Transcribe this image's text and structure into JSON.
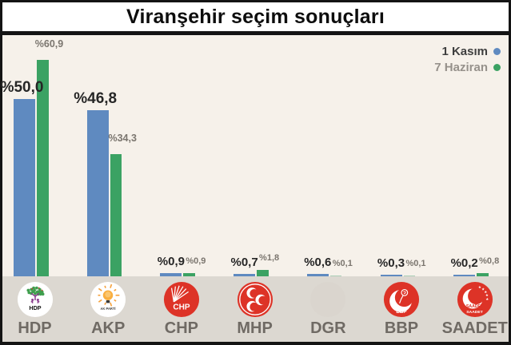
{
  "title": "Viranşehir seçim sonuçları",
  "legend": {
    "items": [
      {
        "label": "1 Kasım",
        "color": "#5f8ac0"
      },
      {
        "label": "7 Haziran",
        "color": "#3ba263"
      }
    ]
  },
  "chart_data": {
    "type": "bar",
    "title": "Viranşehir seçim sonuçları",
    "categories": [
      "HDP",
      "AKP",
      "CHP",
      "MHP",
      "DGR",
      "BBP",
      "SAADET"
    ],
    "series": [
      {
        "name": "1 Kasım",
        "color": "#5f8ac0",
        "values": [
          50.0,
          46.8,
          0.9,
          0.7,
          0.6,
          0.3,
          0.2
        ],
        "labels": [
          "%50,0",
          "%46,8",
          "%0,9",
          "%0,7",
          "%0,6",
          "%0,3",
          "%0,2"
        ]
      },
      {
        "name": "7 Haziran",
        "color": "#3ba263",
        "values": [
          60.9,
          34.3,
          0.9,
          1.8,
          0.1,
          0.1,
          0.8
        ],
        "labels": [
          "%60,9",
          "%34,3",
          "%0,9",
          "%1,8",
          "%0,1",
          "%0,1",
          "%0,8"
        ]
      }
    ],
    "xlabel": "",
    "ylabel": "",
    "ylim": [
      0,
      67
    ],
    "grid": false,
    "legend_position": "top-right"
  },
  "parties": [
    {
      "name": "HDP",
      "logo": "hdp"
    },
    {
      "name": "AKP",
      "logo": "akp"
    },
    {
      "name": "CHP",
      "logo": "chp"
    },
    {
      "name": "MHP",
      "logo": "mhp"
    },
    {
      "name": "DGR",
      "logo": "dgr"
    },
    {
      "name": "BBP",
      "logo": "bbp"
    },
    {
      "name": "SAADET",
      "logo": "saadet"
    }
  ],
  "colors": {
    "background": "#f6f1ea",
    "footer_band": "#dcd8d1",
    "bar_blue": "#5f8ac0",
    "bar_green": "#3ba263",
    "value_label_dark": "#262626",
    "value_label_gray": "#7b766f",
    "party_label": "#6f6a64",
    "party_logo_red": "#dd3327"
  }
}
